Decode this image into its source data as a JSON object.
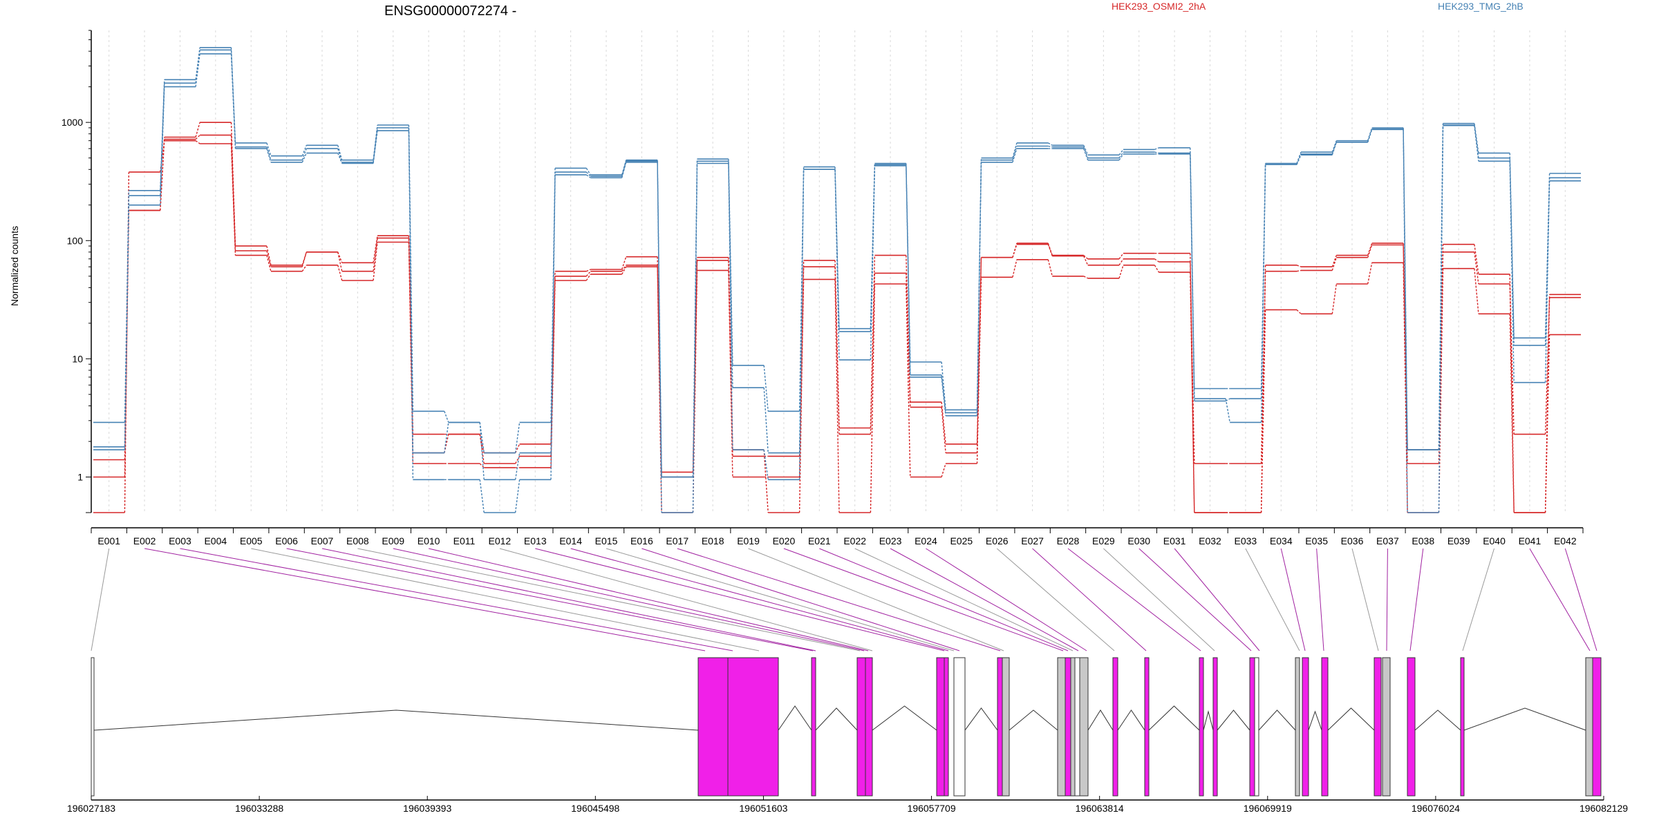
{
  "chart_data": {
    "type": "line",
    "title": "ENSG00000072274 -",
    "ylabel": "Normalized counts",
    "xlabel": "",
    "yscale": "log",
    "ylim": [
      0.5,
      6000
    ],
    "yticks": [
      1,
      10,
      100,
      1000
    ],
    "y_tick_labels": [
      "1",
      "10",
      "100",
      "1000"
    ],
    "grid": "vertical dashed lines at exon centers",
    "legend": "top",
    "categories": [
      "E001",
      "E002",
      "E003",
      "E004",
      "E005",
      "E006",
      "E007",
      "E008",
      "E009",
      "E010",
      "E011",
      "E012",
      "E013",
      "E014",
      "E015",
      "E016",
      "E017",
      "E018",
      "E019",
      "E020",
      "E021",
      "E022",
      "E023",
      "E024",
      "E025",
      "E026",
      "E027",
      "E028",
      "E029",
      "E030",
      "E031",
      "E032",
      "E033",
      "E034",
      "E035",
      "E036",
      "E037",
      "E038",
      "E039",
      "E040",
      "E041",
      "E042"
    ],
    "series": [
      {
        "name": "HEK293_OSMI2_2hA",
        "color": "#d62728",
        "replicates": [
          [
            1.0,
            180,
            750,
            1000,
            90,
            62,
            80,
            65,
            110,
            2.3,
            2.3,
            1.6,
            1.9,
            55,
            57,
            73,
            1.1,
            72,
            1.7,
            0.5,
            68,
            2.6,
            75,
            4.3,
            1.9,
            72,
            95,
            75,
            70,
            78,
            78,
            0.5,
            0.5,
            62,
            60,
            75,
            95,
            1.7,
            93,
            52,
            0.5,
            35
          ],
          [
            1.4,
            180,
            720,
            780,
            82,
            60,
            80,
            55,
            105,
            1.6,
            2.3,
            1.3,
            1.5,
            50,
            55,
            62,
            1.0,
            68,
            1.5,
            1.5,
            60,
            2.3,
            53,
            3.9,
            1.6,
            72,
            93,
            74,
            62,
            70,
            66,
            1.3,
            1.3,
            55,
            56,
            72,
            92,
            1.3,
            80,
            43,
            2.3,
            33
          ],
          [
            0.5,
            380,
            700,
            660,
            75,
            55,
            62,
            46,
            97,
            1.3,
            1.3,
            1.2,
            1.2,
            46,
            52,
            60,
            0.5,
            56,
            1.0,
            1.0,
            47,
            0.5,
            43,
            1.0,
            1.3,
            49,
            69,
            50,
            48,
            62,
            54,
            0.5,
            0.5,
            26,
            24,
            43,
            65,
            0.5,
            58,
            24,
            0.5,
            16
          ]
        ]
      },
      {
        "name": "HEK293_TMG_2hB",
        "color": "#4682b4",
        "replicates": [
          [
            2.9,
            265,
            2300,
            4300,
            670,
            520,
            640,
            480,
            950,
            3.6,
            2.9,
            1.6,
            2.9,
            410,
            360,
            480,
            1.0,
            490,
            8.8,
            3.6,
            420,
            18,
            450,
            9.4,
            3.7,
            500,
            670,
            640,
            530,
            590,
            610,
            5.6,
            5.6,
            450,
            560,
            700,
            900,
            1.7,
            980,
            550,
            15,
            370
          ],
          [
            1.8,
            240,
            2150,
            4100,
            620,
            480,
            600,
            460,
            900,
            1.6,
            2.9,
            0.95,
            1.6,
            380,
            350,
            470,
            1.0,
            470,
            5.7,
            1.6,
            400,
            17,
            440,
            7.3,
            3.5,
            480,
            630,
            620,
            500,
            560,
            550,
            4.6,
            2.9,
            440,
            540,
            680,
            880,
            1.7,
            950,
            500,
            13,
            340
          ],
          [
            1.7,
            200,
            2000,
            3800,
            600,
            460,
            550,
            450,
            850,
            0.95,
            0.95,
            0.5,
            0.95,
            360,
            340,
            460,
            0.5,
            450,
            1.7,
            0.95,
            400,
            9.8,
            430,
            7.0,
            3.3,
            460,
            600,
            600,
            480,
            540,
            540,
            4.4,
            4.6,
            440,
            530,
            680,
            870,
            0.5,
            940,
            470,
            6.3,
            320
          ]
        ]
      }
    ],
    "genomic_axis": {
      "ticks": [
        196027183,
        196033288,
        196039393,
        196045498,
        196051603,
        196057709,
        196063814,
        196069919,
        196076024,
        196082129
      ],
      "tick_labels": [
        "196027183",
        "196033288",
        "196039393",
        "196045498",
        "196051603",
        "196057709",
        "196063814",
        "196069919",
        "196076024",
        "196082129"
      ],
      "range": [
        196027183,
        196082129
      ]
    }
  }
}
